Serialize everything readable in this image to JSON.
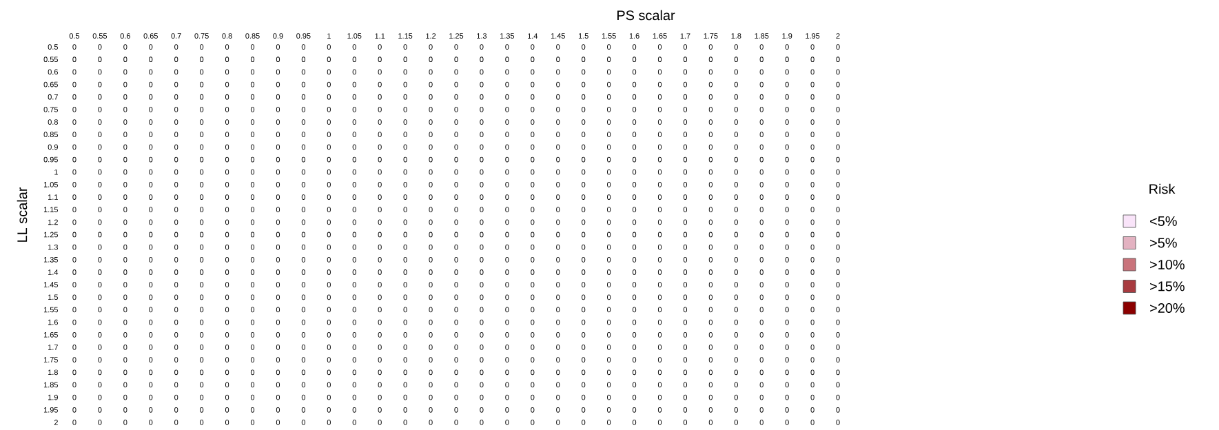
{
  "chart_data": {
    "type": "heatmap",
    "xlabel": "PS scalar",
    "ylabel": "LL scalar",
    "legend_title": "Risk",
    "legend": "right",
    "data_labels": true,
    "categories": [
      "0.5",
      "0.55",
      "0.6",
      "0.65",
      "0.7",
      "0.75",
      "0.8",
      "0.85",
      "0.9",
      "0.95",
      "1",
      "1.05",
      "1.1",
      "1.15",
      "1.2",
      "1.25",
      "1.3",
      "1.35",
      "1.4",
      "1.45",
      "1.5",
      "1.55",
      "1.6",
      "1.65",
      "1.7",
      "1.75",
      "1.8",
      "1.85",
      "1.9",
      "1.95",
      "2"
    ],
    "y_categories": [
      "0.5",
      "0.55",
      "0.6",
      "0.65",
      "0.7",
      "0.75",
      "0.8",
      "0.85",
      "0.9",
      "0.95",
      "1",
      "1.05",
      "1.1",
      "1.15",
      "1.2",
      "1.25",
      "1.3",
      "1.35",
      "1.4",
      "1.45",
      "1.5",
      "1.55",
      "1.6",
      "1.65",
      "1.7",
      "1.75",
      "1.8",
      "1.85",
      "1.9",
      "1.95",
      "2"
    ],
    "series": [
      {
        "name": "<5%",
        "color": "#f9e4f9",
        "values": [
          null,
          null,
          null,
          null,
          null,
          null,
          null,
          null,
          null,
          null,
          null,
          null,
          null,
          null,
          null,
          null,
          null,
          null,
          null,
          null,
          null,
          null,
          null,
          null,
          null,
          null,
          null,
          null,
          null,
          null,
          null
        ]
      },
      {
        "name": ">5%",
        "color": "#e3b2c1",
        "values": [
          null,
          null,
          null,
          null,
          null,
          null,
          null,
          null,
          null,
          null,
          null,
          null,
          null,
          null,
          null,
          null,
          null,
          null,
          null,
          null,
          null,
          null,
          null,
          null,
          null,
          null,
          null,
          null,
          null,
          null,
          null
        ]
      },
      {
        "name": ">10%",
        "color": "#c9737b",
        "values": [
          null,
          null,
          null,
          null,
          null,
          null,
          null,
          null,
          null,
          null,
          null,
          null,
          null,
          null,
          null,
          null,
          null,
          null,
          null,
          null,
          null,
          null,
          null,
          null,
          null,
          null,
          null,
          null,
          null,
          null,
          null
        ]
      },
      {
        "name": ">15%",
        "color": "#a83b40",
        "values": [
          null,
          null,
          null,
          null,
          null,
          null,
          null,
          null,
          null,
          null,
          null,
          null,
          null,
          null,
          null,
          null,
          null,
          null,
          null,
          null,
          null,
          null,
          null,
          null,
          null,
          null,
          null,
          null,
          null,
          null,
          null
        ]
      },
      {
        "name": ">20%",
        "color": "#8b0000",
        "values": [
          null,
          null,
          null,
          null,
          null,
          null,
          null,
          null,
          null,
          null,
          null,
          null,
          null,
          null,
          null,
          null,
          null,
          null,
          null,
          null,
          null,
          null,
          null,
          null,
          null,
          null,
          null,
          null,
          null,
          null,
          null
        ]
      }
    ],
    "cells": [
      [
        0,
        0,
        0,
        0,
        0,
        0,
        0,
        0,
        0,
        0,
        0,
        0,
        0,
        0,
        0,
        0,
        0,
        0,
        0,
        0,
        0,
        0,
        0,
        0,
        0,
        0,
        0,
        0,
        0,
        0,
        0
      ],
      [
        0,
        0,
        0,
        0,
        0,
        0,
        0,
        0,
        0,
        0,
        0,
        0,
        0,
        0,
        0,
        0,
        0,
        0,
        0,
        0,
        0,
        0,
        0,
        0,
        0,
        0,
        0,
        0,
        0,
        0,
        0
      ],
      [
        0,
        0,
        0,
        0,
        0,
        0,
        0,
        0,
        0,
        0,
        0,
        0,
        0,
        0,
        0,
        0,
        0,
        0,
        0,
        0,
        0,
        0,
        0,
        0,
        0,
        0,
        0,
        0,
        0,
        0,
        0
      ],
      [
        0,
        0,
        0,
        0,
        0,
        0,
        0,
        0,
        0,
        0,
        0,
        0,
        0,
        0,
        0,
        0,
        0,
        0,
        0,
        0,
        0,
        0,
        0,
        0,
        0,
        0,
        0,
        0,
        0,
        0,
        0
      ],
      [
        0,
        0,
        0,
        0,
        0,
        0,
        0,
        0,
        0,
        0,
        0,
        0,
        0,
        0,
        0,
        0,
        0,
        0,
        0,
        0,
        0,
        0,
        0,
        0,
        0,
        0,
        0,
        0,
        0,
        0,
        0
      ],
      [
        0,
        0,
        0,
        0,
        0,
        0,
        0,
        0,
        0,
        0,
        0,
        0,
        0,
        0,
        0,
        0,
        0,
        0,
        0,
        0,
        0,
        0,
        0,
        0,
        0,
        0,
        0,
        0,
        0,
        0,
        0
      ],
      [
        0,
        0,
        0,
        0,
        0,
        0,
        0,
        0,
        0,
        0,
        0,
        0,
        0,
        0,
        0,
        0,
        0,
        0,
        0,
        0,
        0,
        0,
        0,
        0,
        0,
        0,
        0,
        0,
        0,
        0,
        0
      ],
      [
        0,
        0,
        0,
        0,
        0,
        0,
        0,
        0,
        0,
        0,
        0,
        0,
        0,
        0,
        0,
        0,
        0,
        0,
        0,
        0,
        0,
        0,
        0,
        0,
        0,
        0,
        0,
        0,
        0,
        0,
        0
      ],
      [
        0,
        0,
        0,
        0,
        0,
        0,
        0,
        0,
        0,
        0,
        0,
        0,
        0,
        0,
        0,
        0,
        0,
        0,
        0,
        0,
        0,
        0,
        0,
        0,
        0,
        0,
        0,
        0,
        0,
        0,
        0
      ],
      [
        0,
        0,
        0,
        0,
        0,
        0,
        0,
        0,
        0,
        0,
        0,
        0,
        0,
        0,
        0,
        0,
        0,
        0,
        0,
        0,
        0,
        0,
        0,
        0,
        0,
        0,
        0,
        0,
        0,
        0,
        0
      ],
      [
        0,
        0,
        0,
        0,
        0,
        0,
        0,
        0,
        0,
        0,
        0,
        0,
        0,
        0,
        0,
        0,
        0,
        0,
        0,
        0,
        0,
        0,
        0,
        0,
        0,
        0,
        0,
        0,
        0,
        0,
        0
      ],
      [
        0,
        0,
        0,
        0,
        0,
        0,
        0,
        0,
        0,
        0,
        0,
        0,
        0,
        0,
        0,
        0,
        0,
        0,
        0,
        0,
        0,
        0,
        0,
        0,
        0,
        0,
        0,
        0,
        0,
        0,
        0
      ],
      [
        0,
        0,
        0,
        0,
        0,
        0,
        0,
        0,
        0,
        0,
        0,
        0,
        0,
        0,
        0,
        0,
        0,
        0,
        0,
        0,
        0,
        0,
        0,
        0,
        0,
        0,
        0,
        0,
        0,
        0,
        0
      ],
      [
        0,
        0,
        0,
        0,
        0,
        0,
        0,
        0,
        0,
        0,
        0,
        0,
        0,
        0,
        0,
        0,
        0,
        0,
        0,
        0,
        0,
        0,
        0,
        0,
        0,
        0,
        0,
        0,
        0,
        0,
        0
      ],
      [
        0,
        0,
        0,
        0,
        0,
        0,
        0,
        0,
        0,
        0,
        0,
        0,
        0,
        0,
        0,
        0,
        0,
        0,
        0,
        0,
        0,
        0,
        0,
        0,
        0,
        0,
        0,
        0,
        0,
        0,
        0
      ],
      [
        0,
        0,
        0,
        0,
        0,
        0,
        0,
        0,
        0,
        0,
        0,
        0,
        0,
        0,
        0,
        0,
        0,
        0,
        0,
        0,
        0,
        0,
        0,
        0,
        0,
        0,
        0,
        0,
        0,
        0,
        0
      ],
      [
        0,
        0,
        0,
        0,
        0,
        0,
        0,
        0,
        0,
        0,
        0,
        0,
        0,
        0,
        0,
        0,
        0,
        0,
        0,
        0,
        0,
        0,
        0,
        0,
        0,
        0,
        0,
        0,
        0,
        0,
        0
      ],
      [
        0,
        0,
        0,
        0,
        0,
        0,
        0,
        0,
        0,
        0,
        0,
        0,
        0,
        0,
        0,
        0,
        0,
        0,
        0,
        0,
        0,
        0,
        0,
        0,
        0,
        0,
        0,
        0,
        0,
        0,
        0
      ],
      [
        0,
        0,
        0,
        0,
        0,
        0,
        0,
        0,
        0,
        0,
        0,
        0,
        0,
        0,
        0,
        0,
        0,
        0,
        0,
        0,
        0,
        0,
        0,
        0,
        0,
        0,
        0,
        0,
        0,
        0,
        0
      ],
      [
        0,
        0,
        0,
        0,
        0,
        0,
        0,
        0,
        0,
        0,
        0,
        0,
        0,
        0,
        0,
        0,
        0,
        0,
        0,
        0,
        0,
        0,
        0,
        0,
        0,
        0,
        0,
        0,
        0,
        0,
        0
      ],
      [
        0,
        0,
        0,
        0,
        0,
        0,
        0,
        0,
        0,
        0,
        0,
        0,
        0,
        0,
        0,
        0,
        0,
        0,
        0,
        0,
        0,
        0,
        0,
        0,
        0,
        0,
        0,
        0,
        0,
        0,
        0
      ],
      [
        0,
        0,
        0,
        0,
        0,
        0,
        0,
        0,
        0,
        0,
        0,
        0,
        0,
        0,
        0,
        0,
        0,
        0,
        0,
        0,
        0,
        0,
        0,
        0,
        0,
        0,
        0,
        0,
        0,
        0,
        0
      ],
      [
        0,
        0,
        0,
        0,
        0,
        0,
        0,
        0,
        0,
        0,
        0,
        0,
        0,
        0,
        0,
        0,
        0,
        0,
        0,
        0,
        0,
        0,
        0,
        0,
        0,
        0,
        0,
        0,
        0,
        0,
        0
      ],
      [
        0,
        0,
        0,
        0,
        0,
        0,
        0,
        0,
        0,
        0,
        0,
        0,
        0,
        0,
        0,
        0,
        0,
        0,
        0,
        0,
        0,
        0,
        0,
        0,
        0,
        0,
        0,
        0,
        0,
        0,
        0
      ],
      [
        0,
        0,
        0,
        0,
        0,
        0,
        0,
        0,
        0,
        0,
        0,
        0,
        0,
        0,
        0,
        0,
        0,
        0,
        0,
        0,
        0,
        0,
        0,
        0,
        0,
        0,
        0,
        0,
        0,
        0,
        0
      ],
      [
        0,
        0,
        0,
        0,
        0,
        0,
        0,
        0,
        0,
        0,
        0,
        0,
        0,
        0,
        0,
        0,
        0,
        0,
        0,
        0,
        0,
        0,
        0,
        0,
        0,
        0,
        0,
        0,
        0,
        0,
        0
      ],
      [
        0,
        0,
        0,
        0,
        0,
        0,
        0,
        0,
        0,
        0,
        0,
        0,
        0,
        0,
        0,
        0,
        0,
        0,
        0,
        0,
        0,
        0,
        0,
        0,
        0,
        0,
        0,
        0,
        0,
        0,
        0
      ],
      [
        0,
        0,
        0,
        0,
        0,
        0,
        0,
        0,
        0,
        0,
        0,
        0,
        0,
        0,
        0,
        0,
        0,
        0,
        0,
        0,
        0,
        0,
        0,
        0,
        0,
        0,
        0,
        0,
        0,
        0,
        0
      ],
      [
        0,
        0,
        0,
        0,
        0,
        0,
        0,
        0,
        0,
        0,
        0,
        0,
        0,
        0,
        0,
        0,
        0,
        0,
        0,
        0,
        0,
        0,
        0,
        0,
        0,
        0,
        0,
        0,
        0,
        0,
        0
      ],
      [
        0,
        0,
        0,
        0,
        0,
        0,
        0,
        0,
        0,
        0,
        0,
        0,
        0,
        0,
        0,
        0,
        0,
        0,
        0,
        0,
        0,
        0,
        0,
        0,
        0,
        0,
        0,
        0,
        0,
        0,
        0
      ],
      [
        0,
        0,
        0,
        0,
        0,
        0,
        0,
        0,
        0,
        0,
        0,
        0,
        0,
        0,
        0,
        0,
        0,
        0,
        0,
        0,
        0,
        0,
        0,
        0,
        0,
        0,
        0,
        0,
        0,
        0,
        0
      ]
    ]
  }
}
